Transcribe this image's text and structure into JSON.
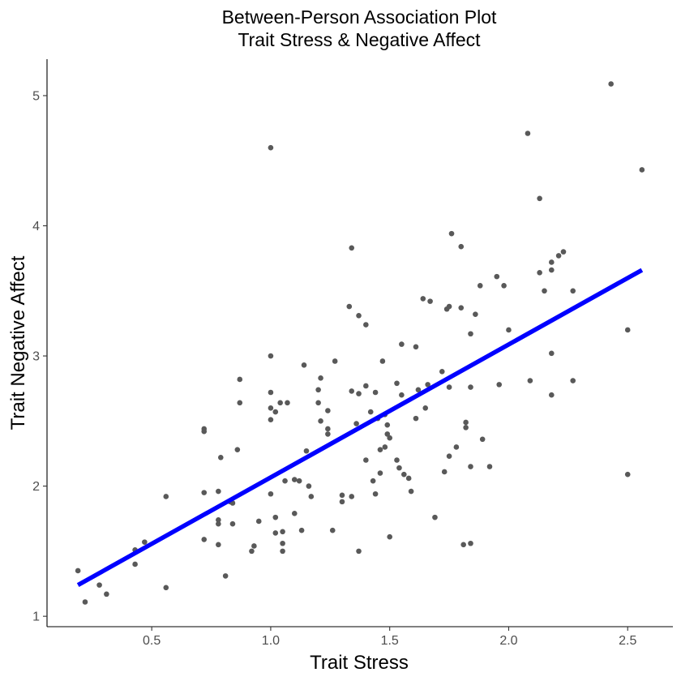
{
  "chart_data": {
    "type": "scatter",
    "title": [
      "Between-Person Association Plot",
      "Trait Stress & Negative Affect"
    ],
    "xlabel": "Trait Stress",
    "ylabel": "Trait Negative Affect",
    "xlim": [
      0.06,
      2.69
    ],
    "ylim": [
      0.92,
      5.28
    ],
    "xticks": [
      0.5,
      1.0,
      1.5,
      2.0,
      2.5
    ],
    "xtick_labels": [
      "0.5",
      "1.0",
      "1.5",
      "2.0",
      "2.5"
    ],
    "yticks": [
      1,
      2,
      3,
      4,
      5
    ],
    "ytick_labels": [
      "1",
      "2",
      "3",
      "4",
      "5"
    ],
    "grid": false,
    "point_color": "#595959",
    "line_color": "#0000ff",
    "trend_line": {
      "x": [
        0.19,
        2.56
      ],
      "y": [
        1.24,
        3.66
      ]
    },
    "points": [
      [
        0.19,
        1.35
      ],
      [
        0.22,
        1.11
      ],
      [
        0.28,
        1.24
      ],
      [
        0.31,
        1.17
      ],
      [
        0.43,
        1.51
      ],
      [
        0.43,
        1.4
      ],
      [
        0.47,
        1.57
      ],
      [
        0.56,
        1.92
      ],
      [
        0.56,
        1.22
      ],
      [
        0.72,
        2.44
      ],
      [
        0.72,
        2.42
      ],
      [
        0.72,
        1.95
      ],
      [
        0.72,
        1.59
      ],
      [
        0.78,
        1.96
      ],
      [
        0.78,
        1.74
      ],
      [
        0.78,
        1.71
      ],
      [
        0.78,
        1.55
      ],
      [
        0.79,
        2.22
      ],
      [
        0.81,
        1.31
      ],
      [
        0.83,
        1.88
      ],
      [
        0.84,
        1.87
      ],
      [
        0.84,
        1.71
      ],
      [
        0.86,
        2.28
      ],
      [
        0.87,
        2.82
      ],
      [
        0.87,
        2.64
      ],
      [
        0.92,
        1.5
      ],
      [
        0.93,
        1.54
      ],
      [
        0.95,
        1.73
      ],
      [
        1.0,
        4.6
      ],
      [
        1.0,
        3.0
      ],
      [
        1.0,
        2.72
      ],
      [
        1.0,
        2.6
      ],
      [
        1.0,
        2.51
      ],
      [
        1.0,
        1.94
      ],
      [
        1.02,
        2.57
      ],
      [
        1.02,
        1.76
      ],
      [
        1.02,
        1.64
      ],
      [
        1.04,
        2.64
      ],
      [
        1.05,
        1.56
      ],
      [
        1.05,
        1.5
      ],
      [
        1.05,
        1.65
      ],
      [
        1.06,
        2.04
      ],
      [
        1.07,
        2.64
      ],
      [
        1.1,
        1.79
      ],
      [
        1.1,
        2.05
      ],
      [
        1.12,
        2.04
      ],
      [
        1.13,
        1.66
      ],
      [
        1.14,
        2.93
      ],
      [
        1.15,
        2.27
      ],
      [
        1.16,
        2.0
      ],
      [
        1.17,
        1.92
      ],
      [
        1.2,
        2.74
      ],
      [
        1.2,
        2.64
      ],
      [
        1.21,
        2.83
      ],
      [
        1.21,
        2.5
      ],
      [
        1.24,
        2.58
      ],
      [
        1.24,
        2.44
      ],
      [
        1.24,
        2.4
      ],
      [
        1.26,
        1.66
      ],
      [
        1.27,
        2.96
      ],
      [
        1.3,
        1.93
      ],
      [
        1.3,
        1.88
      ],
      [
        1.33,
        3.38
      ],
      [
        1.34,
        3.83
      ],
      [
        1.34,
        2.73
      ],
      [
        1.34,
        1.92
      ],
      [
        1.36,
        2.48
      ],
      [
        1.37,
        3.31
      ],
      [
        1.37,
        2.71
      ],
      [
        1.37,
        1.5
      ],
      [
        1.4,
        3.24
      ],
      [
        1.4,
        2.77
      ],
      [
        1.4,
        2.2
      ],
      [
        1.42,
        2.57
      ],
      [
        1.43,
        2.04
      ],
      [
        1.44,
        2.72
      ],
      [
        1.44,
        1.94
      ],
      [
        1.45,
        2.52
      ],
      [
        1.46,
        2.28
      ],
      [
        1.46,
        2.1
      ],
      [
        1.47,
        2.96
      ],
      [
        1.48,
        2.3
      ],
      [
        1.48,
        2.55
      ],
      [
        1.49,
        2.47
      ],
      [
        1.49,
        2.4
      ],
      [
        1.5,
        2.37
      ],
      [
        1.5,
        1.61
      ],
      [
        1.53,
        2.79
      ],
      [
        1.53,
        2.2
      ],
      [
        1.54,
        2.14
      ],
      [
        1.55,
        3.09
      ],
      [
        1.55,
        2.7
      ],
      [
        1.56,
        2.09
      ],
      [
        1.58,
        2.06
      ],
      [
        1.59,
        1.96
      ],
      [
        1.61,
        3.07
      ],
      [
        1.61,
        2.52
      ],
      [
        1.62,
        2.74
      ],
      [
        1.64,
        3.44
      ],
      [
        1.65,
        2.6
      ],
      [
        1.66,
        2.78
      ],
      [
        1.67,
        3.42
      ],
      [
        1.69,
        1.76
      ],
      [
        1.72,
        2.88
      ],
      [
        1.73,
        2.11
      ],
      [
        1.74,
        3.36
      ],
      [
        1.75,
        3.38
      ],
      [
        1.75,
        2.76
      ],
      [
        1.75,
        2.23
      ],
      [
        1.76,
        3.94
      ],
      [
        1.78,
        2.3
      ],
      [
        1.8,
        3.84
      ],
      [
        1.8,
        3.37
      ],
      [
        1.81,
        1.55
      ],
      [
        1.82,
        2.49
      ],
      [
        1.82,
        2.45
      ],
      [
        1.84,
        3.17
      ],
      [
        1.84,
        2.76
      ],
      [
        1.84,
        2.15
      ],
      [
        1.84,
        1.56
      ],
      [
        1.86,
        3.32
      ],
      [
        1.88,
        3.54
      ],
      [
        1.89,
        2.36
      ],
      [
        1.92,
        2.15
      ],
      [
        1.95,
        3.61
      ],
      [
        1.96,
        2.78
      ],
      [
        1.98,
        3.54
      ],
      [
        2.0,
        3.2
      ],
      [
        2.08,
        4.71
      ],
      [
        2.09,
        2.81
      ],
      [
        2.13,
        4.21
      ],
      [
        2.13,
        3.64
      ],
      [
        2.15,
        3.5
      ],
      [
        2.18,
        3.72
      ],
      [
        2.18,
        3.66
      ],
      [
        2.18,
        3.02
      ],
      [
        2.18,
        2.7
      ],
      [
        2.21,
        3.77
      ],
      [
        2.23,
        3.8
      ],
      [
        2.27,
        3.5
      ],
      [
        2.27,
        2.81
      ],
      [
        2.43,
        5.09
      ],
      [
        2.5,
        3.2
      ],
      [
        2.5,
        2.09
      ],
      [
        2.56,
        4.43
      ]
    ]
  }
}
